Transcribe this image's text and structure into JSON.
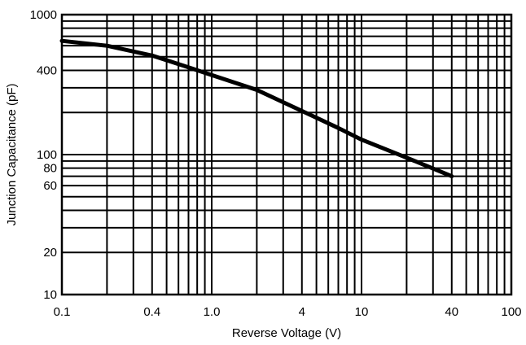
{
  "chart_data": {
    "type": "line",
    "xlabel": "Reverse Voltage (V)",
    "ylabel": "Junction Capacitance (pF)",
    "x_scale": "log",
    "y_scale": "log",
    "xlim": [
      0.1,
      100
    ],
    "ylim": [
      10,
      1000
    ],
    "grid": true,
    "x_ticks": [
      {
        "value": 0.1,
        "label": "0.1"
      },
      {
        "value": 0.4,
        "label": "0.4"
      },
      {
        "value": 1,
        "label": "1.0"
      },
      {
        "value": 4,
        "label": "4"
      },
      {
        "value": 10,
        "label": "10"
      },
      {
        "value": 40,
        "label": "40"
      },
      {
        "value": 100,
        "label": "100"
      }
    ],
    "y_ticks": [
      {
        "value": 10,
        "label": "10"
      },
      {
        "value": 20,
        "label": "20"
      },
      {
        "value": 60,
        "label": "60"
      },
      {
        "value": 80,
        "label": "80"
      },
      {
        "value": 100,
        "label": "100"
      },
      {
        "value": 400,
        "label": "400"
      },
      {
        "value": 1000,
        "label": "1000"
      }
    ],
    "series": [
      {
        "x": [
          0.1,
          0.2,
          0.4,
          0.7,
          1.0,
          2.0,
          4.0,
          7.0,
          10,
          20,
          40
        ],
        "y": [
          650,
          600,
          510,
          420,
          370,
          290,
          205,
          155,
          128,
          95,
          70
        ]
      }
    ]
  }
}
